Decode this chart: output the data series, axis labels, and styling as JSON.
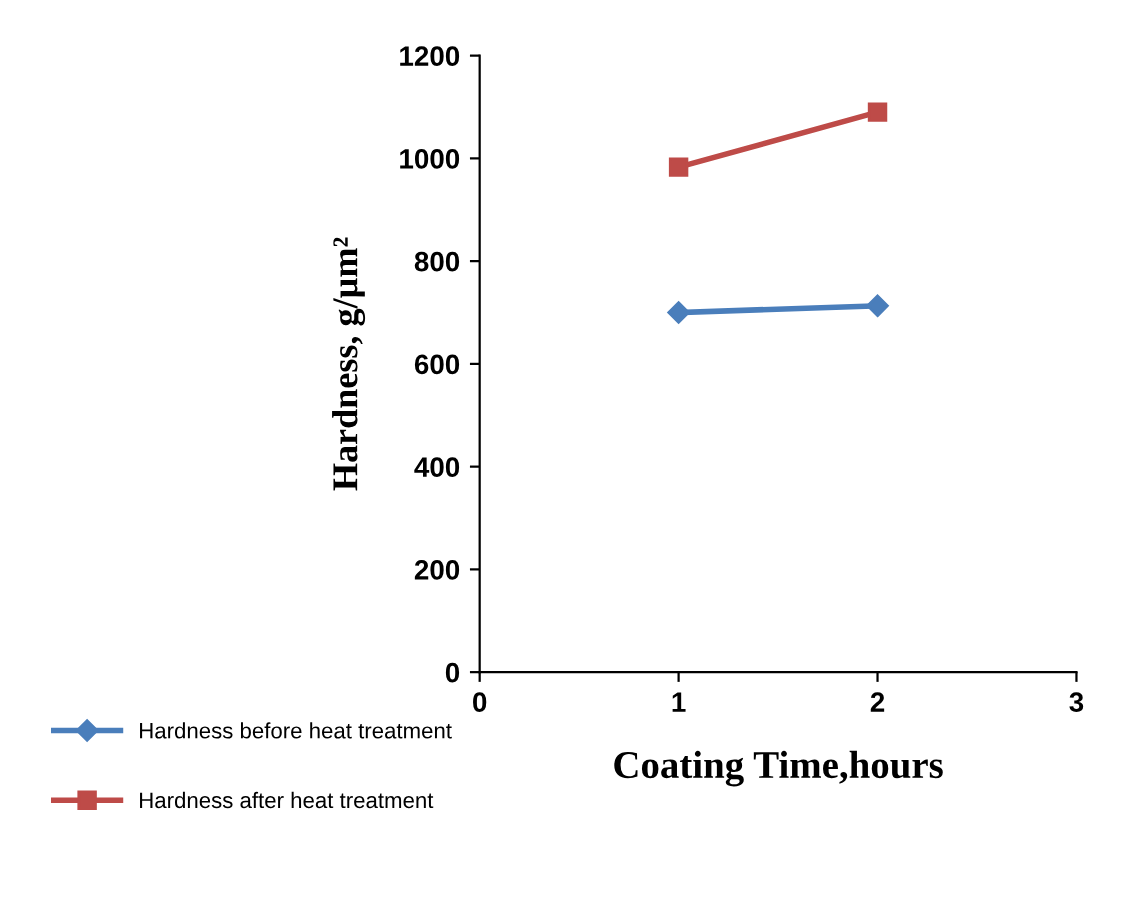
{
  "chart_data": {
    "type": "line",
    "xlabel": "Coating Time,hours",
    "ylabel": "Hardness, g/µm²",
    "x": [
      1,
      2
    ],
    "series": [
      {
        "name": "Hardness before heat treatment",
        "color": "#4a7ebb",
        "values": [
          700,
          713
        ],
        "marker": "diamond"
      },
      {
        "name": "Hardness after heat treatment",
        "color": "#be4b48",
        "values": [
          983,
          1090
        ],
        "marker": "square"
      }
    ],
    "xlim": [
      0,
      3
    ],
    "xticks": [
      0,
      1,
      2,
      3
    ],
    "ylim": [
      0,
      1200
    ],
    "yticks": [
      0,
      200,
      400,
      600,
      800,
      1000,
      1200
    ],
    "grid": false,
    "legend": "bottom left"
  }
}
